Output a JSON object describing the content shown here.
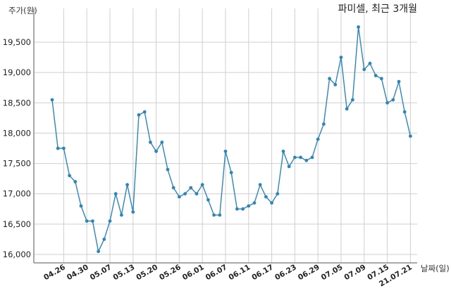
{
  "chart_data": {
    "type": "line",
    "title": "파미셀, 최근 3개월",
    "ylabel": "주가(원)",
    "xlabel": "날짜(일)",
    "ylim": [
      16000,
      19600
    ],
    "yticks": [
      16000,
      16500,
      17000,
      17500,
      18000,
      18500,
      19000,
      19500
    ],
    "ytick_labels": [
      "16,000",
      "16,500",
      "17,000",
      "17,500",
      "18,000",
      "18,500",
      "19,000",
      "19,500"
    ],
    "xtick_labels": [
      {
        "index": 2,
        "label": "04.26"
      },
      {
        "index": 6,
        "label": "04.30"
      },
      {
        "index": 10,
        "label": "05.07"
      },
      {
        "index": 14,
        "label": "05.13"
      },
      {
        "index": 18,
        "label": "05.20"
      },
      {
        "index": 22,
        "label": "05.26"
      },
      {
        "index": 26,
        "label": "06.01"
      },
      {
        "index": 30,
        "label": "06.07"
      },
      {
        "index": 34,
        "label": "06.11"
      },
      {
        "index": 38,
        "label": "06.17"
      },
      {
        "index": 42,
        "label": "06.23"
      },
      {
        "index": 46,
        "label": "06.29"
      },
      {
        "index": 50,
        "label": "07.05"
      },
      {
        "index": 54,
        "label": "07.09"
      },
      {
        "index": 58,
        "label": "07.15"
      },
      {
        "index": 62,
        "label": "21.07.21"
      }
    ],
    "grid": true,
    "legend": "none",
    "series": [
      {
        "color": "#2e86b8",
        "values": [
          18550,
          17750,
          17750,
          17300,
          17200,
          16800,
          16550,
          16550,
          16050,
          16250,
          16550,
          17000,
          16650,
          17150,
          16700,
          18300,
          18350,
          17850,
          17700,
          17850,
          17400,
          17100,
          16950,
          17000,
          17100,
          17000,
          17150,
          16900,
          16650,
          16650,
          17700,
          17350,
          16750,
          16750,
          16800,
          16850,
          17150,
          16950,
          16850,
          17000,
          17700,
          17450,
          17600,
          17600,
          17550,
          17600,
          17900,
          18150,
          18900,
          18800,
          19250,
          18400,
          18550,
          19750,
          19050,
          19150,
          18950,
          18900,
          18500,
          18550,
          18850,
          18350,
          17950
        ]
      }
    ]
  }
}
